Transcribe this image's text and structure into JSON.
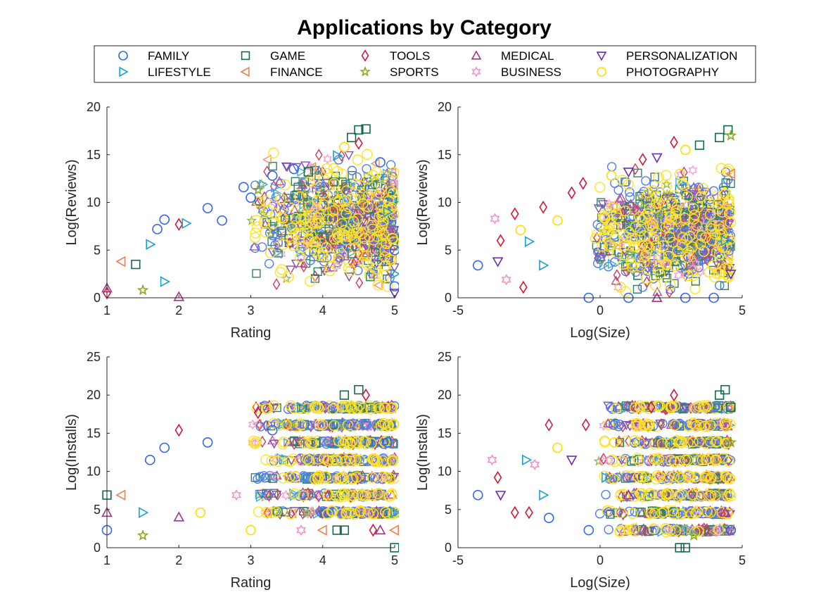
{
  "title": "Applications by Category",
  "legend": {
    "placement": "top",
    "columns": 5,
    "entries": [
      {
        "name": "FAMILY",
        "marker": "circle",
        "color": "#3366ee"
      },
      {
        "name": "GAME",
        "marker": "square",
        "color": "#0f6b4a"
      },
      {
        "name": "TOOLS",
        "marker": "diamond",
        "color": "#cc1a3a"
      },
      {
        "name": "MEDICAL",
        "marker": "triangle-up",
        "color": "#a0338c"
      },
      {
        "name": "PERSONALIZATION",
        "marker": "triangle-down",
        "color": "#6a2fa8"
      },
      {
        "name": "LIFESTYLE",
        "marker": "triangle-right",
        "color": "#1ba0d0"
      },
      {
        "name": "FINANCE",
        "marker": "triangle-left",
        "color": "#f08050"
      },
      {
        "name": "SPORTS",
        "marker": "pentagram",
        "color": "#88aa22"
      },
      {
        "name": "BUSINESS",
        "marker": "hexagram",
        "color": "#f090cc"
      },
      {
        "name": "PHOTOGRAPHY",
        "marker": "circle",
        "color": "#ffdd00"
      }
    ]
  },
  "chart_data": [
    {
      "type": "scatter",
      "xlabel": "Rating",
      "ylabel": "Log(Reviews)",
      "xlim": [
        1,
        5
      ],
      "ylim": [
        0,
        20
      ],
      "xticks": [
        "1",
        "2",
        "3",
        "4",
        "5"
      ],
      "yticks": [
        "0",
        "5",
        "10",
        "15",
        "20"
      ],
      "points": [
        {
          "x": 1.0,
          "y": 0.5,
          "s": 2
        },
        {
          "x": 1.0,
          "y": 1.0,
          "s": 3
        },
        {
          "x": 1.2,
          "y": 3.8,
          "s": 6
        },
        {
          "x": 1.4,
          "y": 3.5,
          "s": 1
        },
        {
          "x": 1.5,
          "y": 0.8,
          "s": 7
        },
        {
          "x": 1.6,
          "y": 5.6,
          "s": 5
        },
        {
          "x": 1.7,
          "y": 7.2,
          "s": 0
        },
        {
          "x": 1.8,
          "y": 8.2,
          "s": 0
        },
        {
          "x": 1.8,
          "y": 1.7,
          "s": 5
        },
        {
          "x": 2.0,
          "y": 7.7,
          "s": 2
        },
        {
          "x": 2.0,
          "y": 0.1,
          "s": 3
        },
        {
          "x": 2.1,
          "y": 7.8,
          "s": 5
        },
        {
          "x": 2.4,
          "y": 9.4,
          "s": 0
        },
        {
          "x": 2.6,
          "y": 8.1,
          "s": 0
        },
        {
          "x": 2.9,
          "y": 11.6,
          "s": 0
        },
        {
          "x": 3.0,
          "y": 10.5,
          "s": 0
        },
        {
          "x": 3.1,
          "y": 11.3,
          "s": 7
        },
        {
          "x": 3.3,
          "y": 12.8,
          "s": 0
        },
        {
          "x": 3.6,
          "y": 13.5,
          "s": 0
        },
        {
          "x": 3.8,
          "y": 13.2,
          "s": 1
        },
        {
          "x": 4.2,
          "y": 14.9,
          "s": 5
        },
        {
          "x": 4.4,
          "y": 16.8,
          "s": 1
        },
        {
          "x": 4.5,
          "y": 17.6,
          "s": 1
        },
        {
          "x": 4.6,
          "y": 17.7,
          "s": 1
        },
        {
          "x": 4.5,
          "y": 16.2,
          "s": 2
        },
        {
          "x": 4.3,
          "y": 15.8,
          "s": 9
        },
        {
          "x": 4.8,
          "y": 14.2,
          "s": 0
        },
        {
          "x": 4.9,
          "y": 9.0,
          "s": 5
        },
        {
          "x": 5.0,
          "y": 5.0,
          "s": 0
        },
        {
          "x": 5.0,
          "y": 0.5,
          "s": 4
        },
        {
          "x": 5.0,
          "y": 2.5,
          "s": 5
        },
        {
          "x": 5.0,
          "y": 1.2,
          "s": 0
        }
      ]
    },
    {
      "type": "scatter",
      "xlabel": "Log(Size)",
      "ylabel": "Log(Reviews)",
      "xlim": [
        -5,
        5
      ],
      "ylim": [
        0,
        20
      ],
      "xticks": [
        "-5",
        "0",
        "5"
      ],
      "yticks": [
        "0",
        "5",
        "10",
        "15",
        "20"
      ],
      "points": [
        {
          "x": -4.3,
          "y": 3.4,
          "s": 0
        },
        {
          "x": -3.7,
          "y": 8.3,
          "s": 8
        },
        {
          "x": -3.6,
          "y": 3.8,
          "s": 4
        },
        {
          "x": -3.5,
          "y": 6.0,
          "s": 2
        },
        {
          "x": -3.3,
          "y": 1.9,
          "s": 8
        },
        {
          "x": -3.0,
          "y": 8.8,
          "s": 2
        },
        {
          "x": -2.8,
          "y": 7.1,
          "s": 9
        },
        {
          "x": -2.7,
          "y": 1.1,
          "s": 2
        },
        {
          "x": -2.5,
          "y": 5.9,
          "s": 5
        },
        {
          "x": -2.0,
          "y": 3.4,
          "s": 5
        },
        {
          "x": -2.0,
          "y": 9.5,
          "s": 2
        },
        {
          "x": -1.5,
          "y": 8.1,
          "s": 9
        },
        {
          "x": -1.0,
          "y": 11.0,
          "s": 2
        },
        {
          "x": -0.6,
          "y": 12.0,
          "s": 2
        },
        {
          "x": -0.4,
          "y": 0.0,
          "s": 0
        },
        {
          "x": 0.4,
          "y": 12.8,
          "s": 9
        },
        {
          "x": 1.0,
          "y": 13.2,
          "s": 4
        },
        {
          "x": 1.5,
          "y": 14.5,
          "s": 2
        },
        {
          "x": 2.0,
          "y": 14.7,
          "s": 4
        },
        {
          "x": 2.6,
          "y": 16.3,
          "s": 2
        },
        {
          "x": 3.0,
          "y": 15.5,
          "s": 9
        },
        {
          "x": 3.5,
          "y": 16.0,
          "s": 1
        },
        {
          "x": 4.2,
          "y": 16.8,
          "s": 1
        },
        {
          "x": 4.5,
          "y": 17.6,
          "s": 1
        },
        {
          "x": 4.6,
          "y": 17.0,
          "s": 7
        },
        {
          "x": 4.6,
          "y": 13.0,
          "s": 6
        },
        {
          "x": 4.4,
          "y": 6.0,
          "s": 5
        },
        {
          "x": 4.6,
          "y": 2.5,
          "s": 4
        },
        {
          "x": 1.0,
          "y": 0.0,
          "s": 0
        },
        {
          "x": 3.0,
          "y": 0.0,
          "s": 0
        },
        {
          "x": 4.0,
          "y": 0.0,
          "s": 0
        },
        {
          "x": 2.0,
          "y": 0.0,
          "s": 3
        }
      ]
    },
    {
      "type": "scatter",
      "xlabel": "Rating",
      "ylabel": "Log(Installs)",
      "xlim": [
        1,
        5
      ],
      "ylim": [
        0,
        25
      ],
      "xticks": [
        "1",
        "2",
        "3",
        "4",
        "5"
      ],
      "yticks": [
        "0",
        "5",
        "10",
        "15",
        "20",
        "25"
      ],
      "points": [
        {
          "x": 1.0,
          "y": 2.3,
          "s": 0
        },
        {
          "x": 1.0,
          "y": 4.6,
          "s": 3
        },
        {
          "x": 1.0,
          "y": 6.9,
          "s": 1
        },
        {
          "x": 1.2,
          "y": 6.9,
          "s": 6
        },
        {
          "x": 1.5,
          "y": 1.6,
          "s": 7
        },
        {
          "x": 1.5,
          "y": 4.6,
          "s": 5
        },
        {
          "x": 1.6,
          "y": 11.5,
          "s": 0
        },
        {
          "x": 1.8,
          "y": 13.1,
          "s": 0
        },
        {
          "x": 2.0,
          "y": 15.4,
          "s": 2
        },
        {
          "x": 2.0,
          "y": 4.0,
          "s": 3
        },
        {
          "x": 2.3,
          "y": 4.6,
          "s": 9
        },
        {
          "x": 2.4,
          "y": 13.8,
          "s": 0
        },
        {
          "x": 2.8,
          "y": 6.9,
          "s": 8
        },
        {
          "x": 3.0,
          "y": 2.3,
          "s": 9
        },
        {
          "x": 3.1,
          "y": 17.7,
          "s": 2
        },
        {
          "x": 3.3,
          "y": 15.4,
          "s": 0
        },
        {
          "x": 3.7,
          "y": 18.4,
          "s": 5
        },
        {
          "x": 3.7,
          "y": 2.3,
          "s": 8
        },
        {
          "x": 4.0,
          "y": 2.3,
          "s": 6
        },
        {
          "x": 4.2,
          "y": 2.3,
          "s": 1
        },
        {
          "x": 4.3,
          "y": 2.3,
          "s": 1
        },
        {
          "x": 4.3,
          "y": 20.0,
          "s": 1
        },
        {
          "x": 4.5,
          "y": 20.7,
          "s": 1
        },
        {
          "x": 4.6,
          "y": 20.0,
          "s": 2
        },
        {
          "x": 4.7,
          "y": 2.3,
          "s": 2
        },
        {
          "x": 4.8,
          "y": 2.3,
          "s": 3
        },
        {
          "x": 4.9,
          "y": 13.8,
          "s": 0
        },
        {
          "x": 5.0,
          "y": 0.0,
          "s": 1
        },
        {
          "x": 5.0,
          "y": 2.3,
          "s": 6
        },
        {
          "x": 5.0,
          "y": 4.6,
          "s": 5
        },
        {
          "x": 4.4,
          "y": 18.4,
          "s": 9
        },
        {
          "x": 3.5,
          "y": 16.1,
          "s": 9
        }
      ]
    },
    {
      "type": "scatter",
      "xlabel": "Log(Size)",
      "ylabel": "Log(Installs)",
      "xlim": [
        -5,
        5
      ],
      "ylim": [
        0,
        25
      ],
      "xticks": [
        "-5",
        "0",
        "5"
      ],
      "yticks": [
        "0",
        "5",
        "10",
        "15",
        "20",
        "25"
      ],
      "points": [
        {
          "x": -4.3,
          "y": 6.9,
          "s": 0
        },
        {
          "x": -3.8,
          "y": 11.5,
          "s": 8
        },
        {
          "x": -3.6,
          "y": 9.2,
          "s": 2
        },
        {
          "x": -3.5,
          "y": 6.9,
          "s": 4
        },
        {
          "x": -3.0,
          "y": 4.6,
          "s": 2
        },
        {
          "x": -2.6,
          "y": 11.5,
          "s": 5
        },
        {
          "x": -2.5,
          "y": 4.6,
          "s": 2
        },
        {
          "x": -2.3,
          "y": 10.9,
          "s": 8
        },
        {
          "x": -2.0,
          "y": 6.9,
          "s": 5
        },
        {
          "x": -1.8,
          "y": 3.9,
          "s": 0
        },
        {
          "x": -1.8,
          "y": 16.1,
          "s": 2
        },
        {
          "x": -1.5,
          "y": 13.1,
          "s": 9
        },
        {
          "x": -1.0,
          "y": 11.5,
          "s": 4
        },
        {
          "x": -0.5,
          "y": 16.1,
          "s": 2
        },
        {
          "x": -0.4,
          "y": 2.3,
          "s": 0
        },
        {
          "x": 0.5,
          "y": 13.8,
          "s": 9
        },
        {
          "x": 1.0,
          "y": 2.3,
          "s": 9
        },
        {
          "x": 1.8,
          "y": 18.4,
          "s": 2
        },
        {
          "x": 2.6,
          "y": 20.0,
          "s": 2
        },
        {
          "x": 2.8,
          "y": 0.0,
          "s": 1
        },
        {
          "x": 3.0,
          "y": 0.0,
          "s": 1
        },
        {
          "x": 3.3,
          "y": 1.6,
          "s": 7
        },
        {
          "x": 4.2,
          "y": 20.0,
          "s": 1
        },
        {
          "x": 4.4,
          "y": 20.7,
          "s": 1
        },
        {
          "x": 4.6,
          "y": 18.4,
          "s": 1
        },
        {
          "x": 4.6,
          "y": 13.8,
          "s": 7
        },
        {
          "x": 4.6,
          "y": 2.3,
          "s": 0
        },
        {
          "x": 4.4,
          "y": 4.6,
          "s": 3
        },
        {
          "x": 3.5,
          "y": 16.1,
          "s": 9
        },
        {
          "x": 2.0,
          "y": 11.5,
          "s": 9
        },
        {
          "x": 1.0,
          "y": 6.9,
          "s": 3
        },
        {
          "x": 0.2,
          "y": 9.2,
          "s": 5
        }
      ]
    }
  ]
}
